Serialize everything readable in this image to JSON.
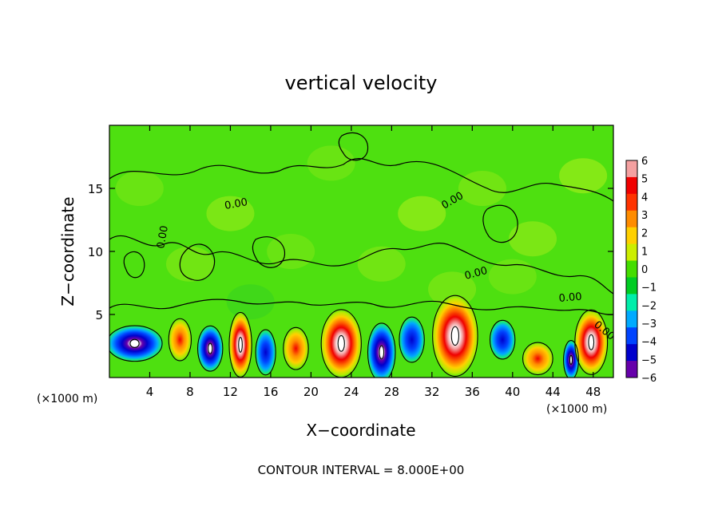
{
  "chart_data": {
    "type": "heatmap",
    "title": "vertical velocity",
    "xlabel": "X−coordinate",
    "ylabel": "Z−coordinate",
    "x_unit_left": "(×1000 m)",
    "x_unit_right": "(×1000 m)",
    "xlim": [
      0,
      50
    ],
    "ylim": [
      0,
      20
    ],
    "x_ticks": [
      4,
      8,
      12,
      16,
      20,
      24,
      28,
      32,
      36,
      40,
      44,
      48
    ],
    "x_tick_labels": [
      "4",
      "8",
      "12",
      "16",
      "20",
      "24",
      "28",
      "32",
      "36",
      "40",
      "44",
      "48"
    ],
    "y_ticks": [
      5,
      10,
      15
    ],
    "y_tick_labels": [
      "5",
      "10",
      "15"
    ],
    "colorbar": {
      "values": [
        6,
        5,
        4,
        3,
        2,
        1,
        0,
        -1,
        -2,
        -3,
        -4,
        -5,
        -6
      ],
      "labels": [
        "6",
        "5",
        "4",
        "3",
        "2",
        "1",
        "0",
        "−1",
        "−2",
        "−3",
        "−4",
        "−5",
        "−6"
      ],
      "colors": [
        "#f4a0a0",
        "#f00000",
        "#ff3300",
        "#ff8c00",
        "#ffd000",
        "#ccee00",
        "#44dd00",
        "#00cc22",
        "#00eeaa",
        "#00aaff",
        "#0044ff",
        "#0000cc",
        "#6600aa"
      ]
    },
    "background_color": "#4ee010",
    "contour_labels": [
      "0.00",
      "0.00",
      "0.00",
      "0.00",
      "0.00",
      "0.00"
    ],
    "cells": [
      {
        "x": 2.5,
        "z": 2.7,
        "w": -4.5,
        "sx": 2.2,
        "sz": 1.1
      },
      {
        "x": 7.0,
        "z": 3.0,
        "w": 4.0,
        "sx": 0.9,
        "sz": 1.3
      },
      {
        "x": 10.0,
        "z": 2.3,
        "w": -5.5,
        "sx": 1.0,
        "sz": 1.4
      },
      {
        "x": 13.0,
        "z": 2.6,
        "w": 6.0,
        "sx": 0.9,
        "sz": 2.0
      },
      {
        "x": 15.5,
        "z": 2.0,
        "w": -4.0,
        "sx": 0.8,
        "sz": 1.4
      },
      {
        "x": 18.5,
        "z": 2.3,
        "w": 2.5,
        "sx": 1.0,
        "sz": 1.3
      },
      {
        "x": 23.0,
        "z": 2.7,
        "w": 6.0,
        "sx": 1.6,
        "sz": 2.1
      },
      {
        "x": 27.0,
        "z": 2.0,
        "w": -6.0,
        "sx": 1.1,
        "sz": 1.8
      },
      {
        "x": 30.0,
        "z": 3.0,
        "w": -3.5,
        "sx": 1.0,
        "sz": 1.4
      },
      {
        "x": 34.3,
        "z": 3.3,
        "w": 6.0,
        "sx": 1.8,
        "sz": 2.5
      },
      {
        "x": 39.0,
        "z": 3.0,
        "w": -3.5,
        "sx": 1.0,
        "sz": 1.2
      },
      {
        "x": 42.5,
        "z": 1.5,
        "w": 1.5,
        "sx": 1.2,
        "sz": 1.0
      },
      {
        "x": 45.8,
        "z": 1.4,
        "w": -5.0,
        "sx": 0.6,
        "sz": 1.2
      },
      {
        "x": 47.8,
        "z": 2.8,
        "w": 6.0,
        "sx": 1.3,
        "sz": 2.0
      }
    ],
    "legend": "right colorbar"
  },
  "footer": "CONTOUR INTERVAL = 8.000E+00"
}
